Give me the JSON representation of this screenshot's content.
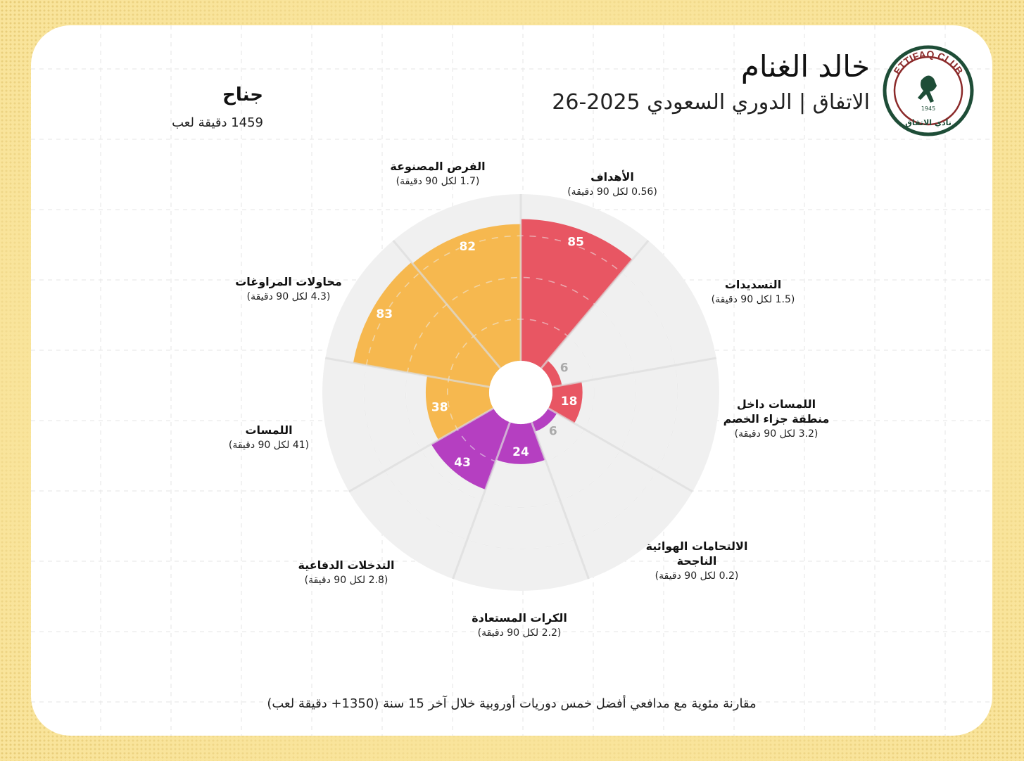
{
  "header": {
    "player_name": "خالد الغنام",
    "subtitle": "الاتفاق | الدوري السعودي 2025-26",
    "position": "جناح",
    "minutes": "1459 دقيقة لعب"
  },
  "logo": {
    "top_text": "ETTIFAQ CLUB",
    "year": "1945",
    "bottom_text": "نادي الاتفاق"
  },
  "footer": "مقارنة مئوية مع مدافعي أفضل خمس دوريات أوروبية خلال آخر 15 سنة (1350+ دقيقة لعب)",
  "colors": {
    "attack": "#e85663",
    "possession": "#f6b84f",
    "defense": "#b53fc1",
    "background": "#f0f0f0"
  },
  "chart_data": {
    "type": "pie",
    "subtype": "polar-percentile",
    "range": [
      0,
      100
    ],
    "rings": [
      25,
      50,
      75
    ],
    "metrics": [
      {
        "name": "الأهداف",
        "per90": "(0.56 لكل 90 دقيقة)",
        "percentile": 85,
        "group": "attack"
      },
      {
        "name": "التسديدات",
        "per90": "(1.5 لكل 90 دقيقة)",
        "percentile": 6,
        "group": "attack"
      },
      {
        "name": "اللمسات داخل\nمنطقة جزاء الخصم",
        "per90": "(3.2 لكل 90 دقيقة)",
        "percentile": 18,
        "group": "attack"
      },
      {
        "name": "الالتحامات الهوائية\nالناجحة",
        "per90": "(0.2 لكل 90 دقيقة)",
        "percentile": 6,
        "group": "defense"
      },
      {
        "name": "الكرات المستعادة",
        "per90": "(2.2 لكل 90 دقيقة)",
        "percentile": 24,
        "group": "defense"
      },
      {
        "name": "التدخلات الدفاعية",
        "per90": "(2.8 لكل 90 دقيقة)",
        "percentile": 43,
        "group": "defense"
      },
      {
        "name": "اللمسات",
        "per90": "(41 لكل 90 دقيقة)",
        "percentile": 38,
        "group": "possession"
      },
      {
        "name": "محاولات المراوغات",
        "per90": "(4.3 لكل 90 دقيقة)",
        "percentile": 83,
        "group": "possession"
      },
      {
        "name": "الفرص المصنوعة",
        "per90": "(1.7 لكل 90 دقيقة)",
        "percentile": 82,
        "group": "possession"
      }
    ]
  }
}
